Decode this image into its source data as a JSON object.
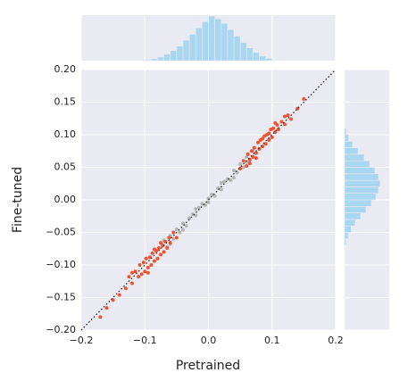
{
  "chart_data": [
    {
      "type": "scatter",
      "x_label": "Pretrained",
      "y_label": "Fine-tuned",
      "xlim": [
        -0.2,
        0.2
      ],
      "ylim": [
        -0.2,
        0.2
      ],
      "xticks": [
        {
          "value": -0.2,
          "label": "−0.2"
        },
        {
          "value": -0.1,
          "label": "−0.1"
        },
        {
          "value": 0,
          "label": "0.0"
        },
        0.1,
        0.2
      ],
      "yticks": [
        {
          "value": -0.2,
          "label": "−0.20"
        },
        {
          "value": -0.15,
          "label": "−0.15"
        },
        {
          "value": -0.1,
          "label": "−0.10"
        },
        {
          "value": -0.05,
          "label": "−0.05"
        },
        {
          "value": 0,
          "label": "0.00"
        },
        {
          "value": 0.05,
          "label": "0.05"
        },
        {
          "value": 0.1,
          "label": "0.10"
        },
        {
          "value": 0.15,
          "label": "0.15"
        },
        {
          "value": 0.2,
          "label": "0.20"
        }
      ],
      "grid": true,
      "background": "#eaeaf2",
      "identity_line": true,
      "series": [
        {
          "color": "#b4b4b4",
          "x": [
            -0.07,
            -0.065,
            -0.06,
            -0.055,
            -0.05,
            -0.045,
            -0.04,
            -0.035,
            -0.03,
            -0.025,
            -0.02,
            -0.015,
            -0.01,
            -0.005,
            0,
            0.005,
            0.01,
            0.015,
            0.02,
            0.025,
            0.03,
            0.035,
            0.04,
            0.045,
            0.05,
            0.055,
            0.06,
            0.065,
            0.07,
            -0.06,
            -0.04,
            -0.02,
            0,
            0.02,
            0.04,
            0.06
          ],
          "y": [
            -0.062,
            -0.072,
            -0.055,
            -0.06,
            -0.045,
            -0.05,
            -0.036,
            -0.04,
            -0.028,
            -0.022,
            -0.024,
            -0.012,
            -0.006,
            -0.008,
            0.002,
            0.008,
            0.006,
            0.018,
            0.016,
            0.028,
            0.032,
            0.03,
            0.045,
            0.042,
            0.055,
            0.05,
            0.066,
            0.06,
            0.075,
            -0.068,
            -0.046,
            -0.014,
            -0.004,
            0.026,
            0.034,
            0.058
          ]
        },
        {
          "color": "#f4502d",
          "x": [
            0.05,
            0.055,
            0.06,
            0.062,
            0.065,
            0.068,
            0.07,
            0.072,
            0.075,
            0.078,
            0.08,
            0.082,
            0.085,
            0.088,
            0.09,
            0.092,
            0.095,
            0.098,
            0.1,
            0.102,
            0.105,
            0.108,
            0.11,
            0.115,
            0.12,
            0.125,
            0.13,
            0.14,
            0.15,
            0.075,
            0.085,
            0.095,
            0.105,
            0.065,
            0.12,
            -0.05,
            -0.055,
            -0.06,
            -0.062,
            -0.065,
            -0.068,
            -0.07,
            -0.072,
            -0.075,
            -0.078,
            -0.08,
            -0.082,
            -0.085,
            -0.088,
            -0.09,
            -0.092,
            -0.095,
            -0.098,
            -0.1,
            -0.102,
            -0.105,
            -0.108,
            -0.11,
            -0.115,
            -0.12,
            -0.125,
            -0.13,
            -0.14,
            -0.15,
            -0.16,
            -0.17,
            -0.075,
            -0.085,
            -0.095,
            -0.12
          ],
          "y": [
            0.048,
            0.06,
            0.052,
            0.07,
            0.062,
            0.075,
            0.066,
            0.08,
            0.072,
            0.088,
            0.078,
            0.092,
            0.082,
            0.098,
            0.086,
            0.1,
            0.092,
            0.108,
            0.096,
            0.11,
            0.104,
            0.115,
            0.108,
            0.12,
            0.116,
            0.13,
            0.124,
            0.14,
            0.155,
            0.064,
            0.094,
            0.102,
            0.118,
            0.056,
            0.128,
            -0.058,
            -0.05,
            -0.066,
            -0.058,
            -0.074,
            -0.064,
            -0.08,
            -0.07,
            -0.084,
            -0.074,
            -0.09,
            -0.078,
            -0.094,
            -0.082,
            -0.1,
            -0.088,
            -0.104,
            -0.09,
            -0.11,
            -0.096,
            -0.114,
            -0.1,
            -0.118,
            -0.11,
            -0.128,
            -0.118,
            -0.136,
            -0.146,
            -0.154,
            -0.166,
            -0.18,
            -0.066,
            -0.076,
            -0.112,
            -0.112
          ]
        }
      ]
    },
    {
      "type": "histogram",
      "orientation": "vertical",
      "color": "#a9d6f0",
      "background": "#eaeaf2",
      "grid": true,
      "xlim": [
        -0.2,
        0.2
      ],
      "ylim": [
        0,
        100
      ],
      "bins": [
        -0.1,
        -0.09,
        -0.08,
        -0.07,
        -0.06,
        -0.05,
        -0.04,
        -0.03,
        -0.02,
        -0.01,
        0,
        0.01,
        0.02,
        0.03,
        0.04,
        0.05,
        0.06,
        0.07,
        0.08,
        0.09,
        0.1
      ],
      "counts": [
        2,
        4,
        8,
        14,
        22,
        32,
        45,
        58,
        72,
        86,
        98,
        92,
        82,
        68,
        54,
        40,
        28,
        18,
        10,
        5
      ]
    },
    {
      "type": "histogram",
      "orientation": "horizontal",
      "color": "#a9d6f0",
      "background": "#eaeaf2",
      "grid": true,
      "ylim": [
        -0.2,
        0.2
      ],
      "xlim": [
        0,
        100
      ],
      "bins": [
        -0.07,
        -0.06,
        -0.05,
        -0.04,
        -0.03,
        -0.02,
        -0.01,
        0,
        0.01,
        0.02,
        0.03,
        0.04,
        0.05,
        0.06,
        0.07,
        0.08,
        0.09,
        0.1,
        0.11
      ],
      "counts": [
        3,
        8,
        15,
        24,
        36,
        48,
        60,
        70,
        76,
        80,
        76,
        68,
        56,
        44,
        30,
        18,
        9,
        4
      ]
    }
  ]
}
